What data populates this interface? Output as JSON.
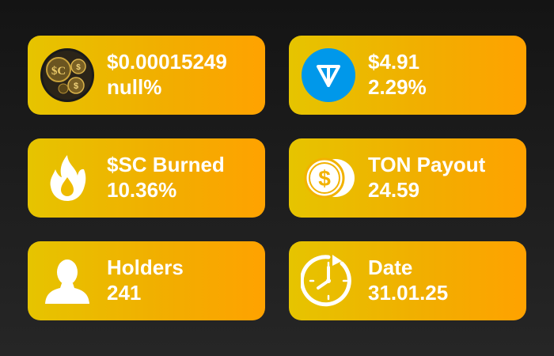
{
  "cards": [
    {
      "icon": "sc-coin-icon",
      "title": "$0.00015249",
      "value": "null%"
    },
    {
      "icon": "ton-logo-icon",
      "title": "$4.91",
      "value": "2.29%"
    },
    {
      "icon": "flame-icon",
      "title": "$SC Burned",
      "value": "10.36%"
    },
    {
      "icon": "coins-icon",
      "title": "TON Payout",
      "value": "24.59"
    },
    {
      "icon": "person-icon",
      "title": "Holders",
      "value": "241"
    },
    {
      "icon": "clock-icon",
      "title": "Date",
      "value": "31.01.25"
    }
  ],
  "colors": {
    "card_start": "#e6c400",
    "card_end": "#ffa200",
    "text": "#ffffff",
    "ton_blue": "#0098ea"
  }
}
